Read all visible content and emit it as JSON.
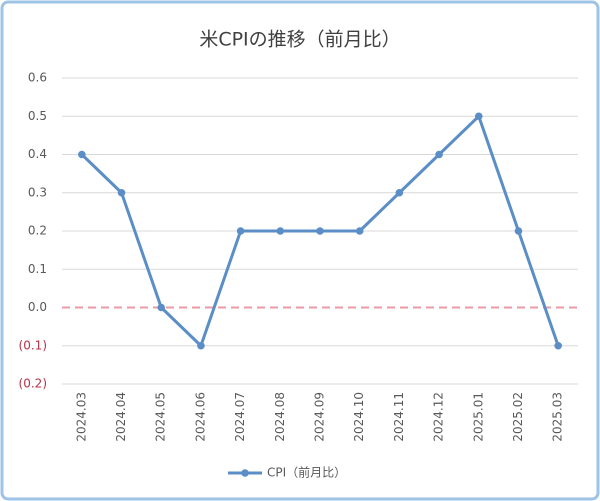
{
  "chart_data": {
    "type": "line",
    "title": "米CPIの推移（前月比）",
    "categories": [
      "2024.03",
      "2024.04",
      "2024.05",
      "2024.06",
      "2024.07",
      "2024.08",
      "2024.09",
      "2024.10",
      "2024.11",
      "2024.12",
      "2025.01",
      "2025.02",
      "2025.03"
    ],
    "series": [
      {
        "name": "CPI（前月比）",
        "color": "#5b8ec6",
        "values": [
          0.4,
          0.3,
          0.0,
          -0.1,
          0.2,
          0.2,
          0.2,
          0.2,
          0.3,
          0.4,
          0.5,
          0.2,
          -0.1
        ]
      }
    ],
    "ylim": [
      -0.2,
      0.6
    ],
    "yticks": [
      {
        "value": -0.2,
        "label": "(0.2)"
      },
      {
        "value": -0.1,
        "label": "(0.1)"
      },
      {
        "value": 0,
        "label": "0.0"
      },
      0.1,
      0.2,
      0.3,
      0.4,
      0.5,
      0.6
    ],
    "grid": true,
    "legend": "bottom",
    "negative_label_color": "#b5334a",
    "zero_line_color": "#eb9aa6"
  }
}
